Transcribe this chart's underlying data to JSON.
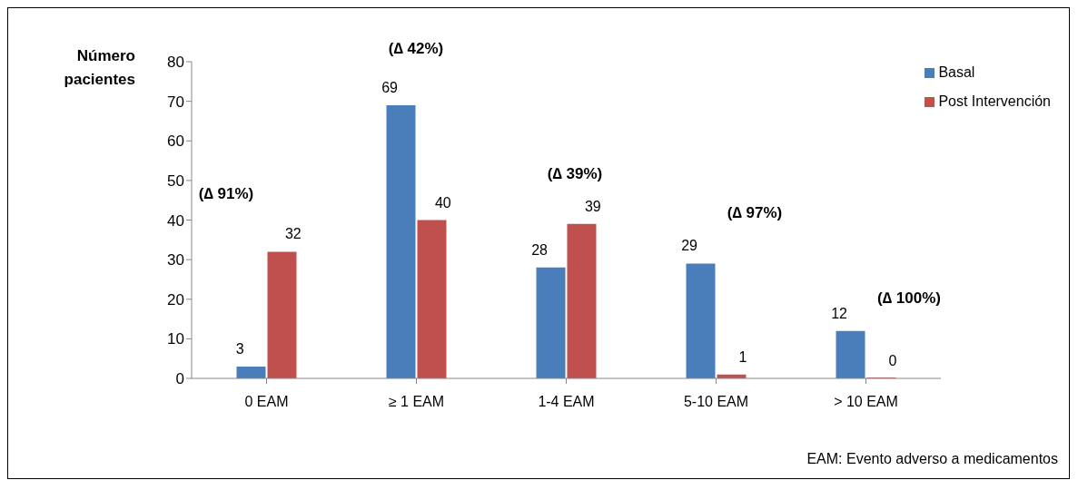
{
  "chart_data": {
    "type": "bar",
    "ylabel": "Número pacientes",
    "categories": [
      "0 EAM",
      "≥ 1 EAM",
      "1-4 EAM",
      "5-10 EAM",
      "> 10 EAM"
    ],
    "series": [
      {
        "name": "Basal",
        "color": "#4a7ebb",
        "values": [
          3,
          69,
          28,
          29,
          12
        ]
      },
      {
        "name": "Post Intervención",
        "color": "#c0504d",
        "values": [
          32,
          40,
          39,
          1,
          0
        ]
      }
    ],
    "ylim": [
      0,
      80
    ],
    "yticks": [
      0,
      10,
      20,
      30,
      40,
      50,
      60,
      70,
      80
    ],
    "grid": false,
    "legend": "top right",
    "data_labels": true,
    "annotations": [
      "(∆ 91%)",
      "(∆ 42%)",
      "(∆ 39%)",
      "(∆ 97%)",
      "(∆ 100%)",
      "EAM: Evento adverso a medicamentos"
    ]
  }
}
